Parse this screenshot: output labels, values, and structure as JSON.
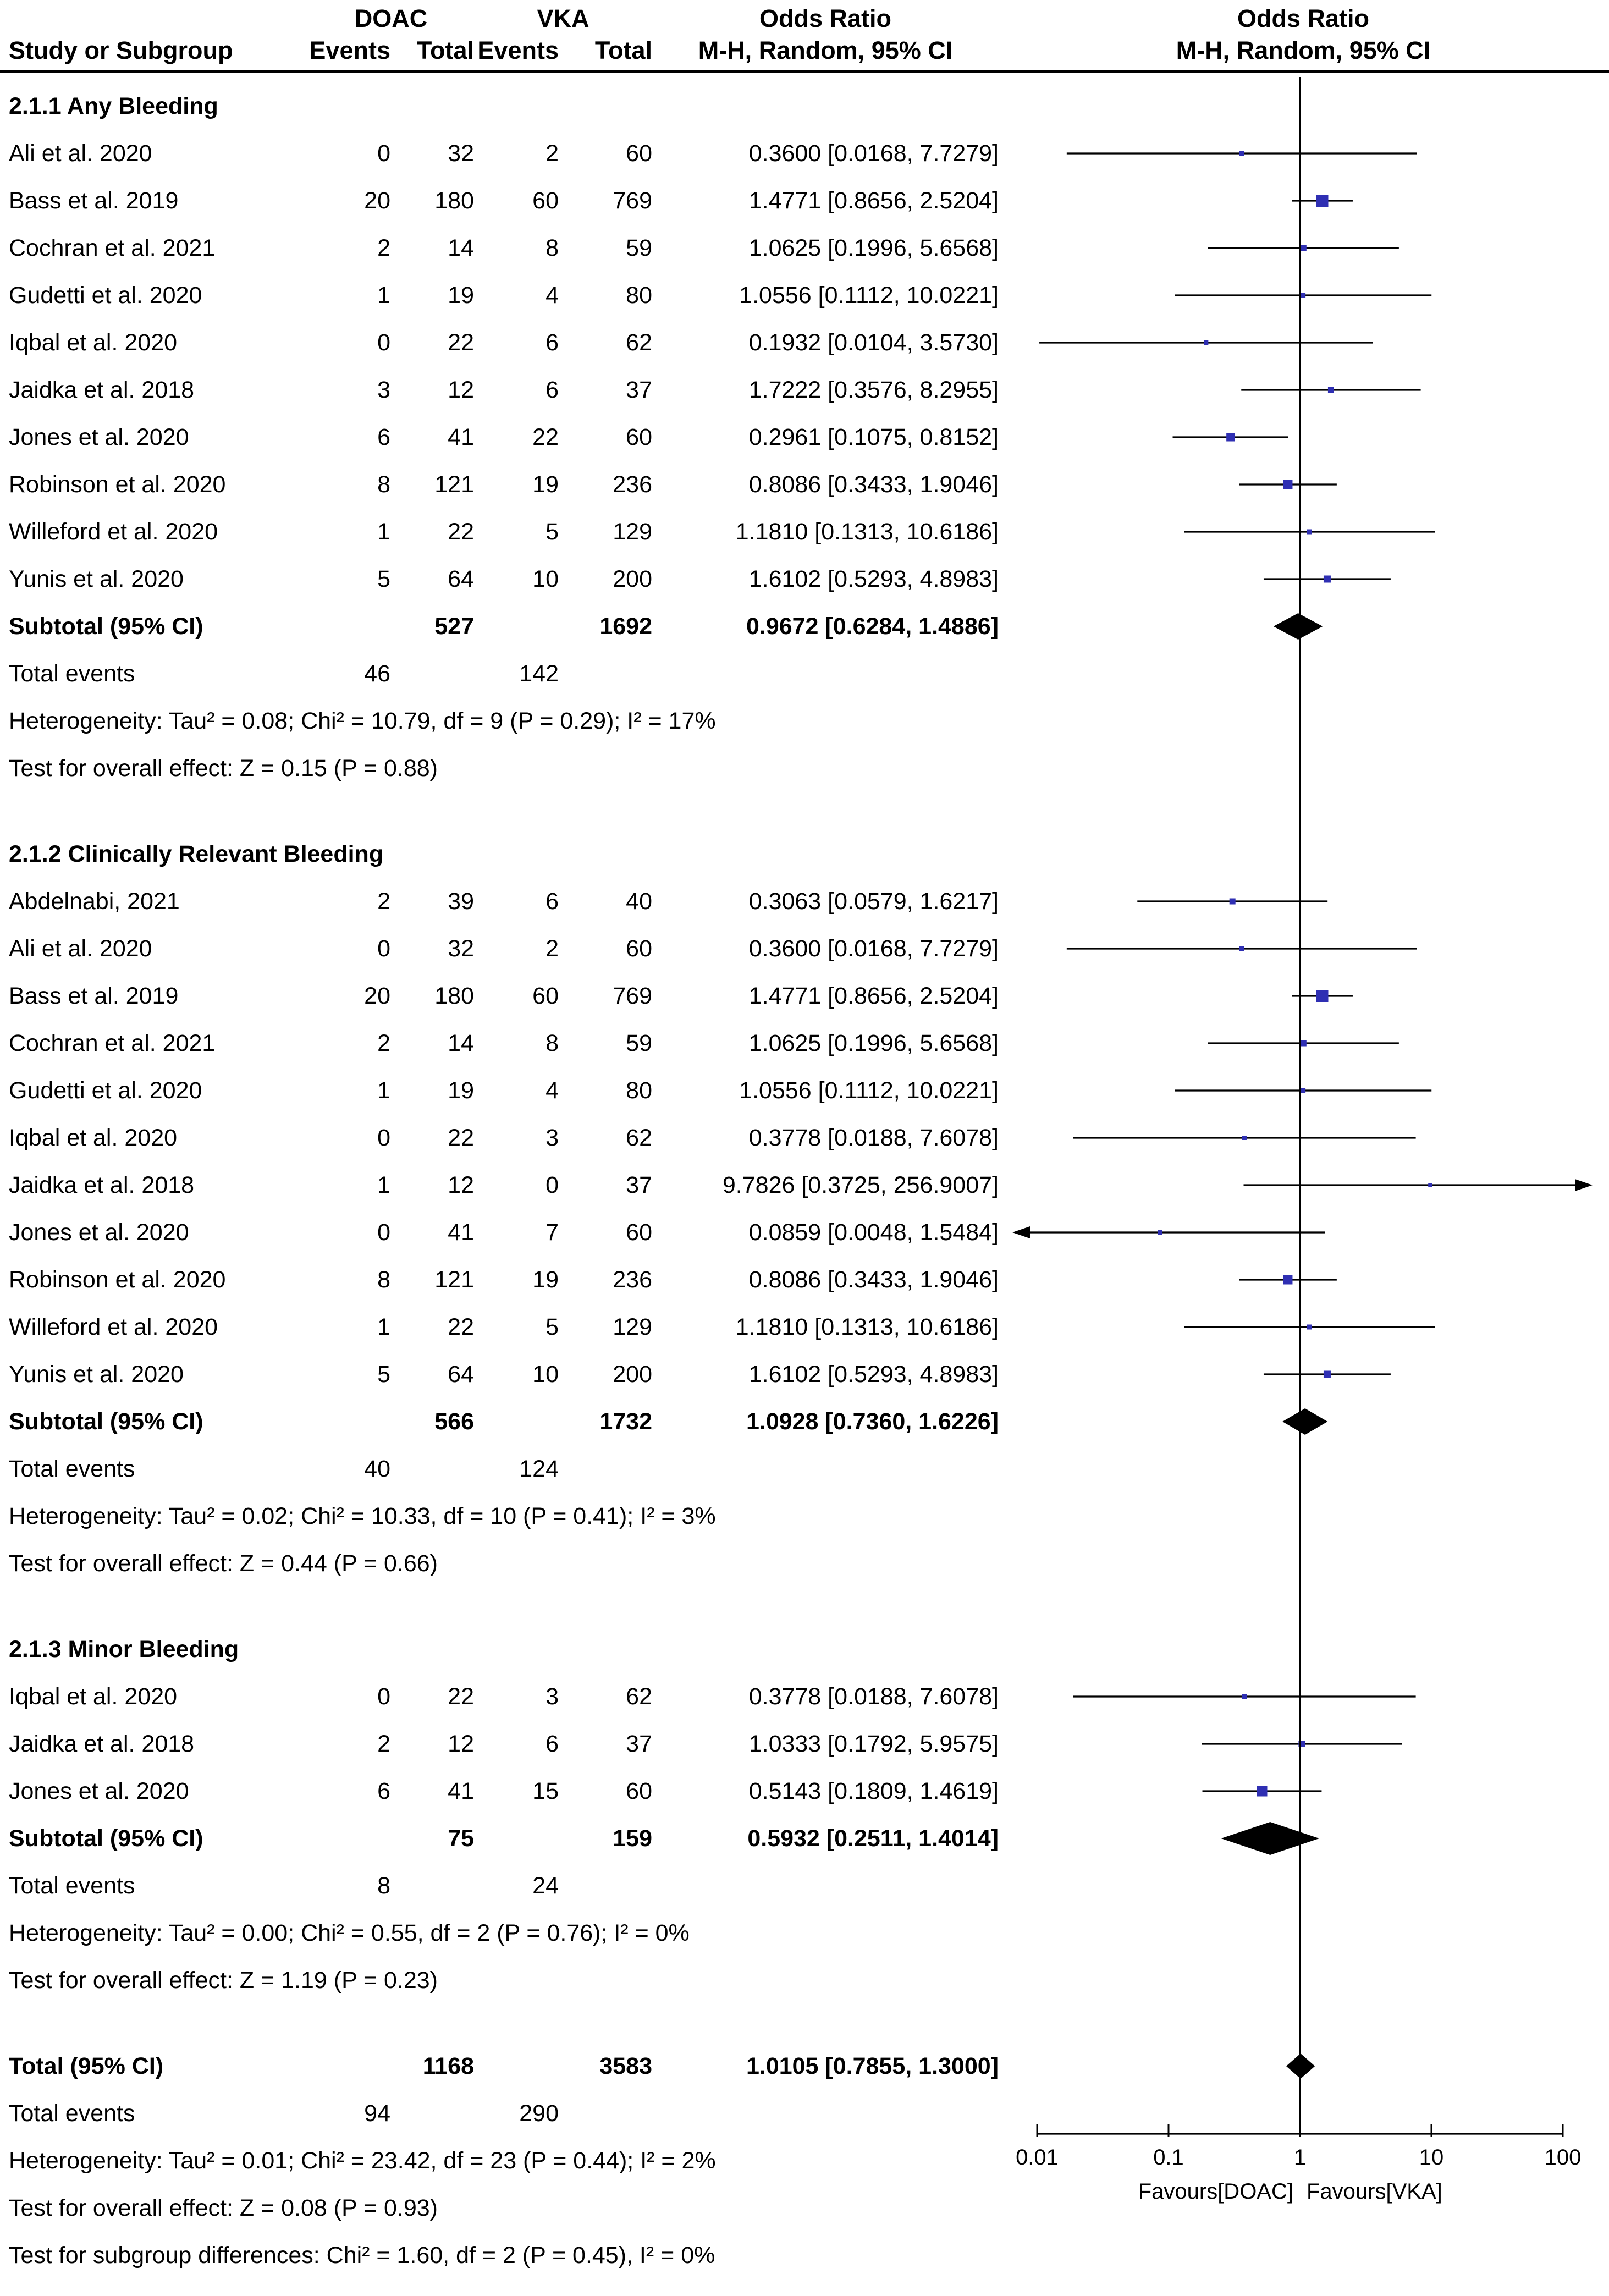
{
  "header": {
    "study_col": "Study or Subgroup",
    "group1": "DOAC",
    "group2": "VKA",
    "events_col1": "Events",
    "total_col1": "Total",
    "events_col2": "Events",
    "total_col2": "Total",
    "or_text_line1": "Odds Ratio",
    "or_text_line2": "M-H, Random, 95% CI",
    "or_plot_line1": "Odds Ratio",
    "or_plot_line2": "M-H, Random, 95% CI"
  },
  "colors": {
    "marker": "#2f2fb3",
    "diamond": "#000000",
    "line": "#000000",
    "text": "#000000",
    "background": "#ffffff"
  },
  "chart_data": {
    "type": "forest",
    "scale": "log",
    "x_range": [
      0.01,
      100
    ],
    "x_ticks": [
      "0.01",
      "0.1",
      "1",
      "10",
      "100"
    ],
    "favours_left": "Favours[DOAC]",
    "favours_right": "Favours[VKA]",
    "effect_measure": "Odds Ratio, M-H, Random, 95% CI",
    "subgroups": [
      {
        "title": "2.1.1 Any Bleeding",
        "rows": [
          {
            "study": "Ali et al. 2020",
            "events1": "0",
            "total1": "32",
            "events2": "2",
            "total2": "60",
            "or": 0.36,
            "lo": 0.0168,
            "hi": 7.7279,
            "ci_text": "0.3600 [0.0168, 7.7279]",
            "ms": 9
          },
          {
            "study": "Bass et al. 2019",
            "events1": "20",
            "total1": "180",
            "events2": "60",
            "total2": "769",
            "or": 1.4771,
            "lo": 0.8656,
            "hi": 2.5204,
            "ci_text": "1.4771 [0.8656, 2.5204]",
            "ms": 22
          },
          {
            "study": "Cochran et al. 2021",
            "events1": "2",
            "total1": "14",
            "events2": "8",
            "total2": "59",
            "or": 1.0625,
            "lo": 0.1996,
            "hi": 5.6568,
            "ci_text": "1.0625 [0.1996, 5.6568]",
            "ms": 11
          },
          {
            "study": "Gudetti et al. 2020",
            "events1": "1",
            "total1": "19",
            "events2": "4",
            "total2": "80",
            "or": 1.0556,
            "lo": 0.1112,
            "hi": 10.0221,
            "ci_text": "1.0556 [0.1112, 10.0221]",
            "ms": 9
          },
          {
            "study": "Iqbal et al. 2020",
            "events1": "0",
            "total1": "22",
            "events2": "6",
            "total2": "62",
            "or": 0.1932,
            "lo": 0.0104,
            "hi": 3.573,
            "ci_text": "0.1932 [0.0104, 3.5730]",
            "ms": 8
          },
          {
            "study": "Jaidka et al. 2018",
            "events1": "3",
            "total1": "12",
            "events2": "6",
            "total2": "37",
            "or": 1.7222,
            "lo": 0.3576,
            "hi": 8.2955,
            "ci_text": "1.7222 [0.3576, 8.2955]",
            "ms": 11
          },
          {
            "study": "Jones et al. 2020",
            "events1": "6",
            "total1": "41",
            "events2": "22",
            "total2": "60",
            "or": 0.2961,
            "lo": 0.1075,
            "hi": 0.8152,
            "ci_text": "0.2961 [0.1075, 0.8152]",
            "ms": 15
          },
          {
            "study": "Robinson et al. 2020",
            "events1": "8",
            "total1": "121",
            "events2": "19",
            "total2": "236",
            "or": 0.8086,
            "lo": 0.3433,
            "hi": 1.9046,
            "ci_text": "0.8086 [0.3433, 1.9046]",
            "ms": 17
          },
          {
            "study": "Willeford et al. 2020",
            "events1": "1",
            "total1": "22",
            "events2": "5",
            "total2": "129",
            "or": 1.181,
            "lo": 0.1313,
            "hi": 10.6186,
            "ci_text": "1.1810 [0.1313, 10.6186]",
            "ms": 9
          },
          {
            "study": "Yunis et al. 2020",
            "events1": "5",
            "total1": "64",
            "events2": "10",
            "total2": "200",
            "or": 1.6102,
            "lo": 0.5293,
            "hi": 4.8983,
            "ci_text": "1.6102 [0.5293, 4.8983]",
            "ms": 13
          }
        ],
        "subtotal": {
          "label": "Subtotal (95% CI)",
          "total1": "527",
          "total2": "1692",
          "or": 0.9672,
          "lo": 0.6284,
          "hi": 1.4886,
          "ci_text": "0.9672 [0.6284, 1.4886]",
          "dh": 24
        },
        "total_events_label": "Total events",
        "events1": "46",
        "events2": "142",
        "heterogeneity": "Heterogeneity: Tau² = 0.08; Chi² = 10.79, df = 9 (P = 0.29); I² = 17%",
        "overall_test": "Test for overall effect: Z = 0.15 (P = 0.88)"
      },
      {
        "title": "2.1.2 Clinically Relevant Bleeding",
        "rows": [
          {
            "study": "Abdelnabi, 2021",
            "events1": "2",
            "total1": "39",
            "events2": "6",
            "total2": "40",
            "or": 0.3063,
            "lo": 0.0579,
            "hi": 1.6217,
            "ci_text": "0.3063 [0.0579, 1.6217]",
            "ms": 11
          },
          {
            "study": "Ali et al. 2020",
            "events1": "0",
            "total1": "32",
            "events2": "2",
            "total2": "60",
            "or": 0.36,
            "lo": 0.0168,
            "hi": 7.7279,
            "ci_text": "0.3600 [0.0168, 7.7279]",
            "ms": 9
          },
          {
            "study": "Bass et al. 2019",
            "events1": "20",
            "total1": "180",
            "events2": "60",
            "total2": "769",
            "or": 1.4771,
            "lo": 0.8656,
            "hi": 2.5204,
            "ci_text": "1.4771 [0.8656, 2.5204]",
            "ms": 22
          },
          {
            "study": "Cochran et al. 2021",
            "events1": "2",
            "total1": "14",
            "events2": "8",
            "total2": "59",
            "or": 1.0625,
            "lo": 0.1996,
            "hi": 5.6568,
            "ci_text": "1.0625 [0.1996, 5.6568]",
            "ms": 11
          },
          {
            "study": "Gudetti et al. 2020",
            "events1": "1",
            "total1": "19",
            "events2": "4",
            "total2": "80",
            "or": 1.0556,
            "lo": 0.1112,
            "hi": 10.0221,
            "ci_text": "1.0556 [0.1112, 10.0221]",
            "ms": 9
          },
          {
            "study": "Iqbal et al. 2020",
            "events1": "0",
            "total1": "22",
            "events2": "3",
            "total2": "62",
            "or": 0.3778,
            "lo": 0.0188,
            "hi": 7.6078,
            "ci_text": "0.3778 [0.0188, 7.6078]",
            "ms": 8
          },
          {
            "study": "Jaidka et al. 2018",
            "events1": "1",
            "total1": "12",
            "events2": "0",
            "total2": "37",
            "or": 9.7826,
            "lo": 0.3725,
            "hi": 256.9007,
            "ci_text": "9.7826 [0.3725, 256.9007]",
            "ms": 7
          },
          {
            "study": "Jones et al. 2020",
            "events1": "0",
            "total1": "41",
            "events2": "7",
            "total2": "60",
            "or": 0.0859,
            "lo": 0.0048,
            "hi": 1.5484,
            "ci_text": "0.0859 [0.0048, 1.5484]",
            "ms": 8
          },
          {
            "study": "Robinson et al. 2020",
            "events1": "8",
            "total1": "121",
            "events2": "19",
            "total2": "236",
            "or": 0.8086,
            "lo": 0.3433,
            "hi": 1.9046,
            "ci_text": "0.8086 [0.3433, 1.9046]",
            "ms": 17
          },
          {
            "study": "Willeford et al. 2020",
            "events1": "1",
            "total1": "22",
            "events2": "5",
            "total2": "129",
            "or": 1.181,
            "lo": 0.1313,
            "hi": 10.6186,
            "ci_text": "1.1810 [0.1313, 10.6186]",
            "ms": 9
          },
          {
            "study": "Yunis et al. 2020",
            "events1": "5",
            "total1": "64",
            "events2": "10",
            "total2": "200",
            "or": 1.6102,
            "lo": 0.5293,
            "hi": 4.8983,
            "ci_text": "1.6102 [0.5293, 4.8983]",
            "ms": 13
          }
        ],
        "subtotal": {
          "label": "Subtotal (95% CI)",
          "total1": "566",
          "total2": "1732",
          "or": 1.0928,
          "lo": 0.736,
          "hi": 1.6226,
          "ci_text": "1.0928 [0.7360, 1.6226]",
          "dh": 24
        },
        "total_events_label": "Total events",
        "events1": "40",
        "events2": "124",
        "heterogeneity": "Heterogeneity: Tau² = 0.02; Chi² = 10.33, df = 10 (P = 0.41); I² = 3%",
        "overall_test": "Test for overall effect: Z = 0.44 (P = 0.66)"
      },
      {
        "title": "2.1.3 Minor Bleeding",
        "rows": [
          {
            "study": "Iqbal et al. 2020",
            "events1": "0",
            "total1": "22",
            "events2": "3",
            "total2": "62",
            "or": 0.3778,
            "lo": 0.0188,
            "hi": 7.6078,
            "ci_text": "0.3778 [0.0188, 7.6078]",
            "ms": 9
          },
          {
            "study": "Jaidka et al. 2018",
            "events1": "2",
            "total1": "12",
            "events2": "6",
            "total2": "37",
            "or": 1.0333,
            "lo": 0.1792,
            "hi": 5.9575,
            "ci_text": "1.0333 [0.1792, 5.9575]",
            "ms": 12
          },
          {
            "study": "Jones et al. 2020",
            "events1": "6",
            "total1": "41",
            "events2": "15",
            "total2": "60",
            "or": 0.5143,
            "lo": 0.1809,
            "hi": 1.4619,
            "ci_text": "0.5143 [0.1809, 1.4619]",
            "ms": 19
          }
        ],
        "subtotal": {
          "label": "Subtotal (95% CI)",
          "total1": "75",
          "total2": "159",
          "or": 0.5932,
          "lo": 0.2511,
          "hi": 1.4014,
          "ci_text": "0.5932 [0.2511, 1.4014]",
          "dh": 30
        },
        "total_events_label": "Total events",
        "events1": "8",
        "events2": "24",
        "heterogeneity": "Heterogeneity: Tau² = 0.00; Chi² = 0.55, df = 2 (P = 0.76); I² = 0%",
        "overall_test": "Test for overall effect: Z = 1.19 (P = 0.23)"
      }
    ],
    "total": {
      "label": "Total (95% CI)",
      "total1": "1168",
      "total2": "3583",
      "or": 1.0105,
      "lo": 0.7855,
      "hi": 1.3,
      "ci_text": "1.0105 [0.7855, 1.3000]",
      "dh": 23,
      "total_events_label": "Total events",
      "events1": "94",
      "events2": "290",
      "heterogeneity": "Heterogeneity: Tau² = 0.01; Chi² = 23.42, df = 23 (P = 0.44); I² = 2%",
      "overall_test": "Test for overall effect: Z = 0.08 (P = 0.93)",
      "subgroup_test": "Test for subgroup differences: Chi² = 1.60, df = 2 (P = 0.45), I² = 0%"
    }
  }
}
